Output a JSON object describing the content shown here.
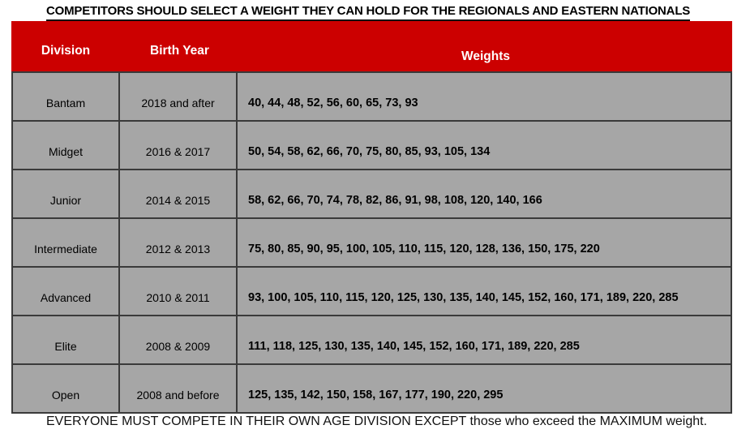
{
  "page": {
    "title": "COMPETITORS SHOULD SELECT A WEIGHT THEY CAN HOLD FOR THE REGIONALS AND EASTERN NATIONALS",
    "footer": "EVERYONE MUST COMPETE IN THEIR OWN AGE DIVISION EXCEPT those who exceed the MAXIMUM weight."
  },
  "table": {
    "columns": [
      "Division",
      "Birth Year",
      "Weights"
    ],
    "rows": [
      {
        "division": "Bantam",
        "birth_year": "2018 and after",
        "weights": "40, 44, 48, 52, 56, 60, 65, 73, 93"
      },
      {
        "division": "Midget",
        "birth_year": "2016 & 2017",
        "weights": "50, 54, 58, 62, 66, 70, 75, 80, 85, 93, 105, 134"
      },
      {
        "division": "Junior",
        "birth_year": "2014 & 2015",
        "weights": "58, 62, 66, 70, 74, 78, 82, 86, 91, 98, 108, 120, 140, 166"
      },
      {
        "division": "Intermediate",
        "birth_year": "2012 & 2013",
        "weights": "75, 80, 85, 90, 95, 100, 105, 110, 115, 120, 128, 136, 150, 175, 220"
      },
      {
        "division": "Advanced",
        "birth_year": "2010 & 2011",
        "weights": "93, 100, 105, 110, 115, 120, 125, 130, 135, 140, 145, 152, 160, 171, 189, 220, 285"
      },
      {
        "division": "Elite",
        "birth_year": "2008 & 2009",
        "weights": "111, 118, 125, 130, 135, 140, 145, 152, 160, 171, 189, 220, 285"
      },
      {
        "division": "Open",
        "birth_year": "2008 and before",
        "weights": "125, 135, 142, 150, 158, 167, 177, 190, 220, 295"
      }
    ]
  },
  "colors": {
    "header_bg": "#cc0000",
    "header_text": "#ffffff",
    "row_bg": "#a6a6a6",
    "border": "#3a3a3a",
    "text": "#000000"
  }
}
